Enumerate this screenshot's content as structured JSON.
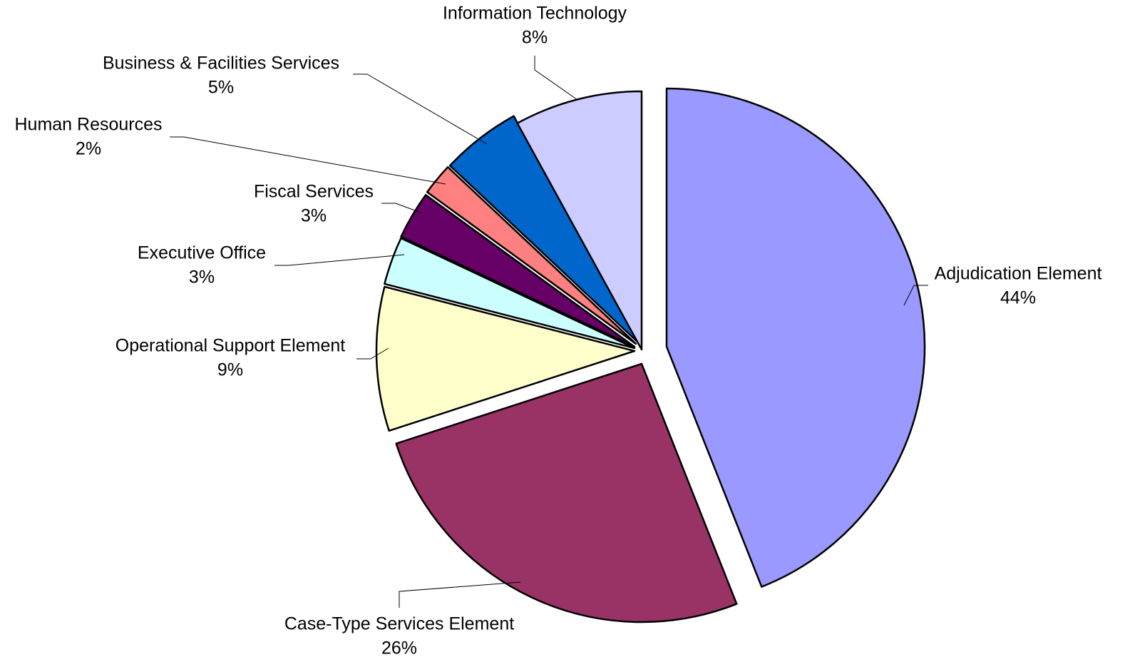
{
  "chart_data": {
    "type": "pie",
    "title": "",
    "exploded": true,
    "slices": [
      {
        "label": "Adjudication Element",
        "percent_label": "44%",
        "value": 44,
        "color": "#9999ff"
      },
      {
        "label": "Case-Type Services Element",
        "percent_label": "26%",
        "value": 26,
        "color": "#993366"
      },
      {
        "label": "Operational Support Element",
        "percent_label": "9%",
        "value": 9,
        "color": "#ffffcc"
      },
      {
        "label": "Executive Office",
        "percent_label": "3%",
        "value": 3,
        "color": "#ccffff"
      },
      {
        "label": "Fiscal Services",
        "percent_label": "3%",
        "value": 3,
        "color": "#660066"
      },
      {
        "label": "Human Resources",
        "percent_label": "2%",
        "value": 2,
        "color": "#ff8080"
      },
      {
        "label": "Business & Facilities Services",
        "percent_label": "5%",
        "value": 5,
        "color": "#0066cc"
      },
      {
        "label": "Information Technology",
        "percent_label": "8%",
        "value": 8,
        "color": "#ccccff"
      }
    ]
  }
}
